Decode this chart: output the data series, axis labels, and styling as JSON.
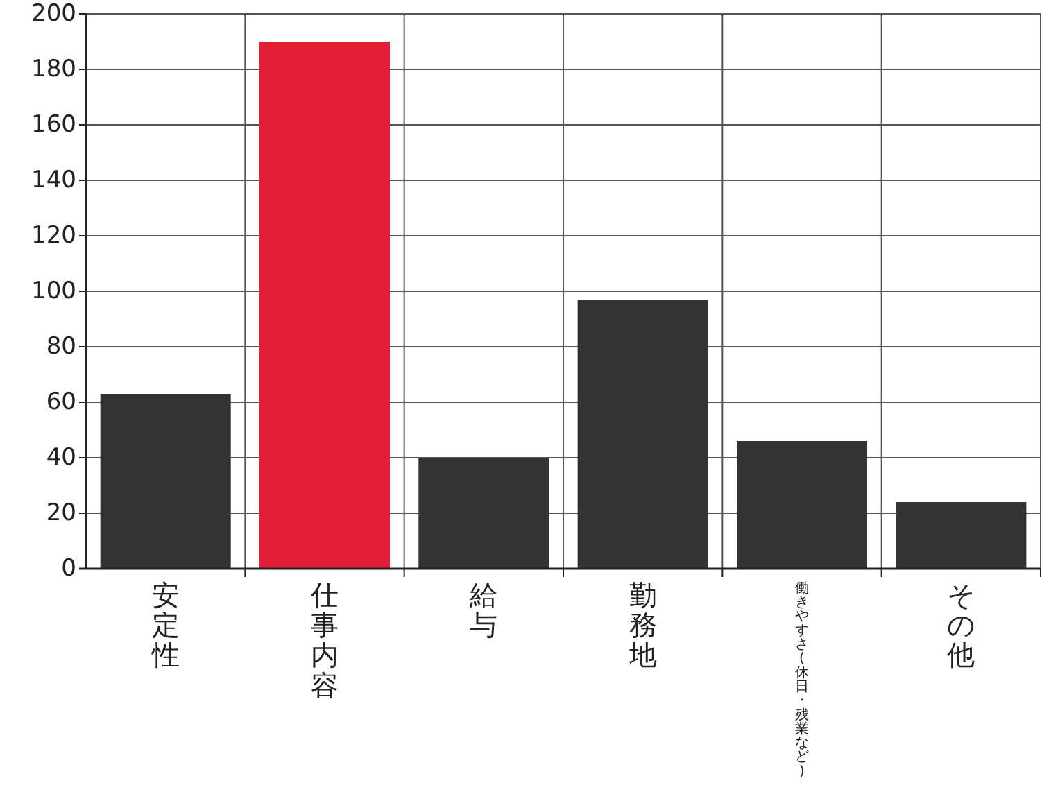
{
  "chart_data": {
    "type": "bar",
    "categories": [
      "安定性",
      "仕事内容",
      "給与",
      "勤務地",
      "働きやすさ(休日・残業など)",
      "その他"
    ],
    "values": [
      63,
      190,
      40,
      97,
      46,
      24
    ],
    "colors": [
      "#333333",
      "#e01e36",
      "#333333",
      "#333333",
      "#333333",
      "#333333"
    ],
    "ylim": [
      0,
      200
    ],
    "yticks": [
      0,
      20,
      40,
      60,
      80,
      100,
      120,
      140,
      160,
      180,
      200
    ],
    "grid": true
  }
}
